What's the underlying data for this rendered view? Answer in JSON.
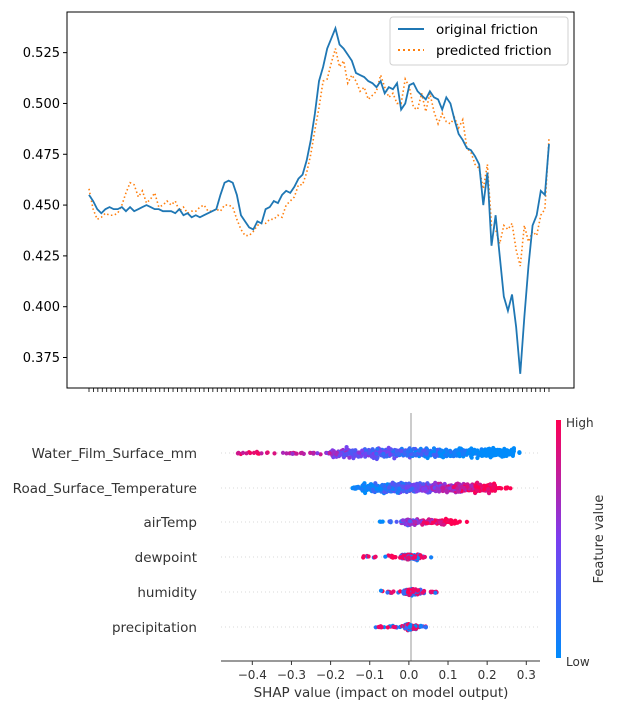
{
  "chart_data": [
    {
      "type": "line",
      "xlabel": "",
      "ylabel": "",
      "ylim": [
        0.36,
        0.545
      ],
      "yticks": [
        0.375,
        0.4,
        0.425,
        0.45,
        0.475,
        0.5,
        0.525
      ],
      "ytick_labels": [
        "0.375",
        "0.400",
        "0.425",
        "0.450",
        "0.475",
        "0.500",
        "0.525"
      ],
      "xtick_count": 105,
      "legend_position": "top-right",
      "colors": {
        "original": "#1f77b4",
        "predicted": "#ff7f0e"
      },
      "series": [
        {
          "name": "original friction",
          "style": "solid",
          "values": [
            0.455,
            0.452,
            0.448,
            0.446,
            0.448,
            0.449,
            0.448,
            0.448,
            0.449,
            0.447,
            0.449,
            0.447,
            0.448,
            0.449,
            0.45,
            0.449,
            0.448,
            0.448,
            0.447,
            0.447,
            0.447,
            0.446,
            0.448,
            0.445,
            0.446,
            0.444,
            0.445,
            0.444,
            0.445,
            0.446,
            0.447,
            0.448,
            0.455,
            0.461,
            0.462,
            0.461,
            0.455,
            0.445,
            0.442,
            0.439,
            0.438,
            0.442,
            0.441,
            0.448,
            0.449,
            0.452,
            0.451,
            0.455,
            0.457,
            0.456,
            0.459,
            0.463,
            0.465,
            0.472,
            0.482,
            0.495,
            0.511,
            0.518,
            0.527,
            0.532,
            0.537,
            0.529,
            0.527,
            0.524,
            0.521,
            0.515,
            0.514,
            0.513,
            0.511,
            0.51,
            0.508,
            0.511,
            0.505,
            0.508,
            0.507,
            0.51,
            0.497,
            0.5,
            0.509,
            0.51,
            0.506,
            0.504,
            0.502,
            0.506,
            0.503,
            0.502,
            0.497,
            0.503,
            0.5,
            0.492,
            0.485,
            0.482,
            0.478,
            0.477,
            0.474,
            0.47,
            0.45,
            0.466,
            0.43,
            0.445,
            0.425,
            0.405,
            0.398,
            0.406,
            0.39,
            0.367,
            0.395,
            0.42,
            0.44,
            0.445,
            0.457,
            0.455,
            0.48
          ]
        },
        {
          "name": "predicted friction",
          "style": "dotted",
          "values": [
            0.458,
            0.448,
            0.443,
            0.444,
            0.446,
            0.445,
            0.445,
            0.446,
            0.45,
            0.456,
            0.461,
            0.46,
            0.454,
            0.457,
            0.451,
            0.453,
            0.456,
            0.449,
            0.45,
            0.452,
            0.45,
            0.452,
            0.447,
            0.449,
            0.446,
            0.447,
            0.447,
            0.449,
            0.45,
            0.447,
            0.447,
            0.448,
            0.447,
            0.45,
            0.45,
            0.449,
            0.443,
            0.438,
            0.435,
            0.435,
            0.437,
            0.44,
            0.441,
            0.441,
            0.443,
            0.443,
            0.445,
            0.444,
            0.45,
            0.452,
            0.454,
            0.46,
            0.46,
            0.466,
            0.475,
            0.487,
            0.498,
            0.511,
            0.512,
            0.52,
            0.527,
            0.518,
            0.521,
            0.51,
            0.514,
            0.511,
            0.506,
            0.508,
            0.502,
            0.504,
            0.506,
            0.514,
            0.508,
            0.503,
            0.505,
            0.5,
            0.5,
            0.512,
            0.508,
            0.498,
            0.497,
            0.505,
            0.496,
            0.505,
            0.496,
            0.49,
            0.495,
            0.491,
            0.49,
            0.493,
            0.488,
            0.492,
            0.478,
            0.476,
            0.47,
            0.468,
            0.458,
            0.47,
            0.44,
            0.438,
            0.431,
            0.44,
            0.438,
            0.441,
            0.428,
            0.42,
            0.44,
            0.432,
            0.437,
            0.435,
            0.445,
            0.448,
            0.483
          ]
        }
      ]
    },
    {
      "type": "scatter",
      "subtype": "shap-beeswarm",
      "xlabel": "SHAP value (impact on model output)",
      "ylabel": "",
      "xlim": [
        -0.48,
        0.335
      ],
      "xticks": [
        -0.4,
        -0.3,
        -0.2,
        -0.1,
        0.0,
        0.1,
        0.2,
        0.3
      ],
      "xtick_labels": [
        "−0.4",
        "−0.3",
        "−0.2",
        "−0.1",
        "0.0",
        "0.1",
        "0.2",
        "0.3"
      ],
      "features": [
        {
          "name": "Water_Film_Surface_mm",
          "range": [
            -0.44,
            0.29
          ],
          "dense": [
            -0.2,
            0.27
          ],
          "color_trend": "high-left"
        },
        {
          "name": "Road_Surface_Temperature",
          "range": [
            -0.145,
            0.26
          ],
          "dense": [
            -0.12,
            0.22
          ],
          "color_trend": "low-left"
        },
        {
          "name": "airTemp",
          "range": [
            -0.08,
            0.16
          ],
          "dense": [
            -0.02,
            0.12
          ],
          "color_trend": "high-right"
        },
        {
          "name": "dewpoint",
          "range": [
            -0.12,
            0.075
          ],
          "dense": [
            -0.02,
            0.03
          ],
          "color_trend": "mixed"
        },
        {
          "name": "humidity",
          "range": [
            -0.075,
            0.09
          ],
          "dense": [
            -0.015,
            0.03
          ],
          "color_trend": "mixed"
        },
        {
          "name": "precipitation",
          "range": [
            -0.09,
            0.055
          ],
          "dense": [
            -0.01,
            0.02
          ],
          "color_trend": "mixed"
        }
      ],
      "colorbar": {
        "label": "Feature value",
        "high_label": "High",
        "low_label": "Low",
        "high_color": "#ff0052",
        "low_color": "#008bfb"
      }
    }
  ]
}
